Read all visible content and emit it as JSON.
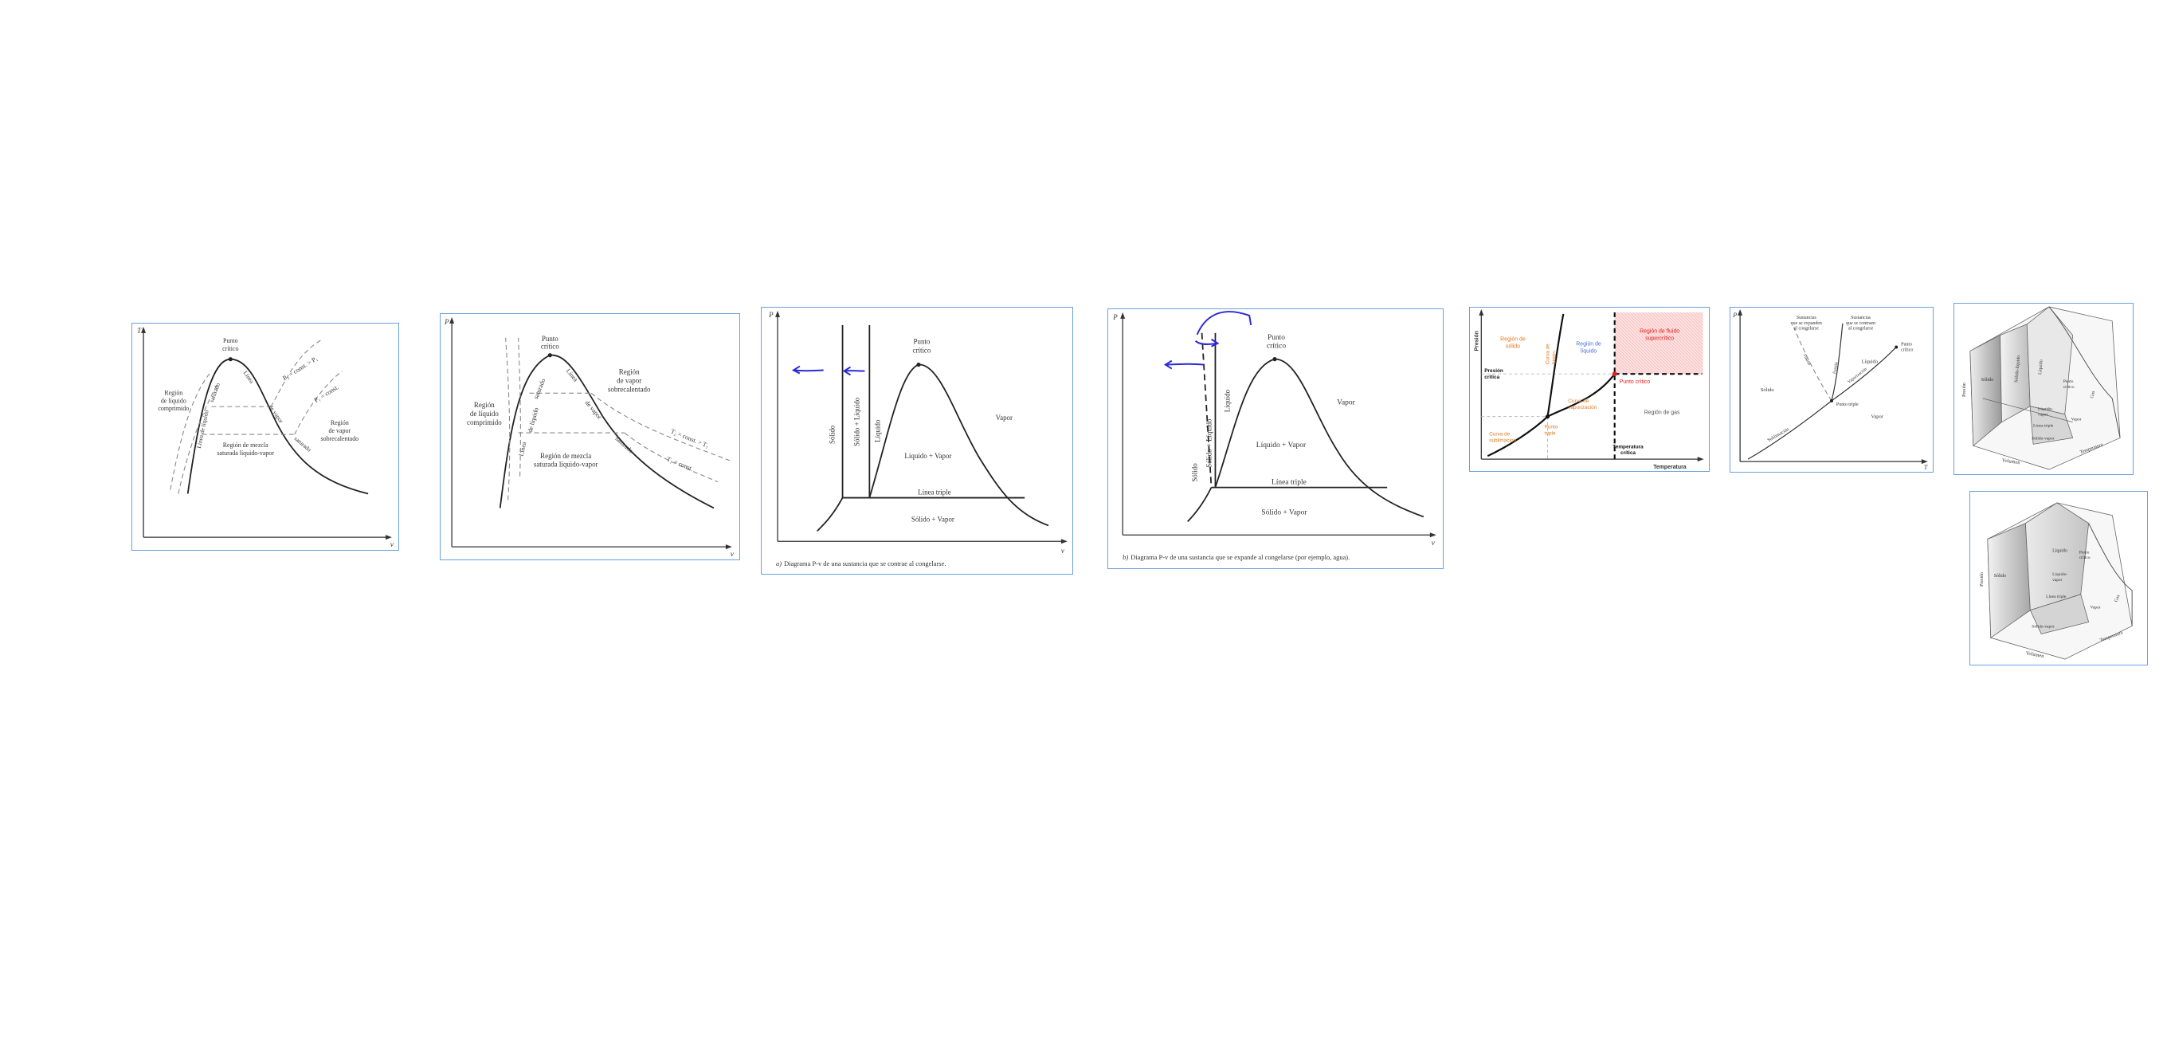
{
  "p1": {
    "y_axis": "T",
    "x_axis": "v",
    "critical": [
      "Punto",
      "crítico"
    ],
    "p2_label": "P₂ = const. > P₁",
    "p1_label": "P₁ = const.",
    "compressed": [
      "Región",
      "de líquido",
      "comprimido"
    ],
    "sat_liquid_line": "Línea de líquido",
    "sat_liquid_line2": "saturado",
    "sat_vapor_line": "Línea",
    "sat_vapor_line2": "de vapor",
    "sat_vapor_line3": "saturado",
    "mix": [
      "Región de mezcla",
      "saturada líquido-vapor"
    ],
    "superheated": [
      "Región",
      "de vapor",
      "sobrecalentado"
    ]
  },
  "p2": {
    "y_axis": "P",
    "x_axis": "v",
    "critical": [
      "Punto",
      "crítico"
    ],
    "compressed": [
      "Región",
      "de líquido",
      "comprimido"
    ],
    "sat_liquid_line": "Línea",
    "sat_liquid_line2": "de líquido",
    "sat_liquid_line3": "saturado",
    "sat_vapor_line": "Línea",
    "sat_vapor_line2": "de vapor",
    "sat_vapor_line3": "saturado",
    "superheated": [
      "Región",
      "de vapor",
      "sobrecalentado"
    ],
    "t2_label": "T₂ = const. > T₁",
    "t1_label": "T₁ = const.",
    "mix": [
      "Región de mezcla",
      "saturada líquido-vapor"
    ]
  },
  "p3": {
    "y_axis": "P",
    "x_axis": "v",
    "critical": [
      "Punto",
      "crítico"
    ],
    "solid": "Sólido",
    "solid_liquid": "Sólido + Líquido",
    "liquid": "Líquido",
    "liquid_vapor": "Líquido + Vapor",
    "vapor": "Vapor",
    "triple_line": "Línea triple",
    "solid_vapor": "Sólido + Vapor",
    "caption_letter": "a)",
    "caption": "Diagrama P-v de una sustancia que se contrae al congelarse."
  },
  "p4": {
    "y_axis": "P",
    "x_axis": "v",
    "critical": [
      "Punto",
      "crítico"
    ],
    "solid_liquid": "Sólido + Líquido",
    "liquid": "Líquido",
    "solid": "Sólido",
    "vapor": "Vapor",
    "liquid_vapor": "Líquido + Vapor",
    "triple_line": "Línea triple",
    "solid_vapor": "Sólido + Vapor",
    "caption_letter": "b)",
    "caption": "Diagrama P-v de una sustancia que se expande al congelarse (por ejemplo, agua)."
  },
  "p5": {
    "y_axis": "Presión",
    "x_axis": "Temperatura",
    "solid_region": [
      "Región de",
      "sólido"
    ],
    "liquid_region": [
      "Región de",
      "líquido"
    ],
    "supercritical": [
      "Región de fluido",
      "supercrítico"
    ],
    "critical_pressure": [
      "Presión",
      "crítica"
    ],
    "critical_point": "Punto crítico",
    "fusion_curve": [
      "Curva de",
      "fusión"
    ],
    "vaporization_curve": [
      "Curva de",
      "vaporización"
    ],
    "sublimation_curve": [
      "Curva de",
      "sublimación"
    ],
    "triple_point": [
      "Punto",
      "triple"
    ],
    "gas_region": "Región de gas",
    "critical_temp": [
      "Temperatura",
      "crítica"
    ],
    "colors": {
      "orange": "#e07b1f",
      "red": "#e0221c",
      "blue": "#4b6fd6"
    }
  },
  "p6": {
    "y_axis": "P",
    "x_axis": "T",
    "expand": [
      "Sustancias",
      "que se expanden",
      "al congelarse"
    ],
    "contract": [
      "Sustancias",
      "que se contraen",
      "al congelarse"
    ],
    "critical": [
      "Punto",
      "crítico"
    ],
    "liquid": "Líquido",
    "solid": "Sólido",
    "fusion": "Fusión",
    "fusion2": "Fusión",
    "vaporization": "Vaporización",
    "triple": "Punto triple",
    "vapor": "Vapor",
    "sublimation": "Sublimación"
  },
  "p7": {
    "pressure": "Presión",
    "volume": "Volumen",
    "temperature": "Temperatura",
    "solid": "Sólido",
    "solid_liquid": "Sólido-líquido",
    "liquid": "Líquido",
    "critical": [
      "Punto",
      "crítico"
    ],
    "gas": "Gas",
    "liquid_vapor": [
      "Líquido-",
      "vapor"
    ],
    "vapor": "Vapor",
    "triple_line": "Línea triple",
    "solid_vapor": "Sólido-vapor"
  },
  "p8": {
    "pressure": "Presión",
    "volume": "Volumen",
    "temperature": "Temperatura",
    "solid": "Sólido",
    "liquid": "Líquido",
    "critical": [
      "Punto",
      "crítico"
    ],
    "gas": "Gas",
    "liquid_vapor": [
      "Líquido-",
      "vapor"
    ],
    "vapor": "Vapor",
    "triple_line": "Línea triple",
    "solid_vapor": "Sólido-vapor"
  }
}
